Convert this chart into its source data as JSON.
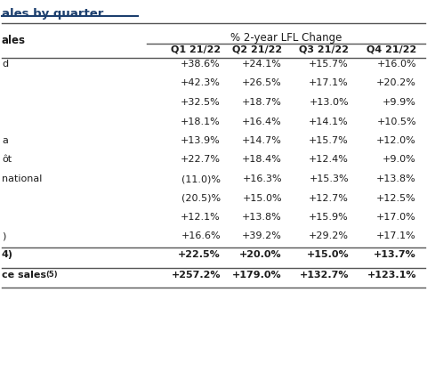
{
  "title": "ales by quarter",
  "header_group": "% 2-year LFL Change",
  "col_header": "ales",
  "columns": [
    "Q1 21/22",
    "Q2 21/22",
    "Q3 21/22",
    "Q4 21/22"
  ],
  "rows": [
    {
      "label": "d",
      "values": [
        "+38.6%",
        "+24.1%",
        "+15.7%",
        "+16.0%"
      ],
      "bold": false
    },
    {
      "label": "",
      "values": [
        "+42.3%",
        "+26.5%",
        "+17.1%",
        "+20.2%"
      ],
      "bold": false
    },
    {
      "label": "",
      "values": [
        "+32.5%",
        "+18.7%",
        "+13.0%",
        "+9.9%"
      ],
      "bold": false
    },
    {
      "label": "",
      "values": [
        "+18.1%",
        "+16.4%",
        "+14.1%",
        "+10.5%"
      ],
      "bold": false
    },
    {
      "label": "a",
      "values": [
        "+13.9%",
        "+14.7%",
        "+15.7%",
        "+12.0%"
      ],
      "bold": false
    },
    {
      "label": "ôt",
      "values": [
        "+22.7%",
        "+18.4%",
        "+12.4%",
        "+9.0%"
      ],
      "bold": false
    },
    {
      "label": "national",
      "values": [
        "(11.0)%",
        "+16.3%",
        "+15.3%",
        "+13.8%"
      ],
      "bold": false
    },
    {
      "label": "",
      "values": [
        "(20.5)%",
        "+15.0%",
        "+12.7%",
        "+12.5%"
      ],
      "bold": false
    },
    {
      "label": "",
      "values": [
        "+12.1%",
        "+13.8%",
        "+15.9%",
        "+17.0%"
      ],
      "bold": false
    },
    {
      "label": ")",
      "values": [
        "+16.6%",
        "+39.2%",
        "+29.2%",
        "+17.1%"
      ],
      "bold": false
    }
  ],
  "subtotal_row": {
    "label": "4)",
    "values": [
      "+22.5%",
      "+20.0%",
      "+15.0%",
      "+13.7%"
    ],
    "bold": true
  },
  "final_row": {
    "label": "ce sales(5)",
    "values": [
      "+257.2%",
      "+179.0%",
      "+132.7%",
      "+123.1%"
    ],
    "bold": true
  },
  "bg_color": "#ffffff",
  "text_color": "#1c1c1c",
  "line_color": "#555555",
  "title_color": "#1c3f6e"
}
